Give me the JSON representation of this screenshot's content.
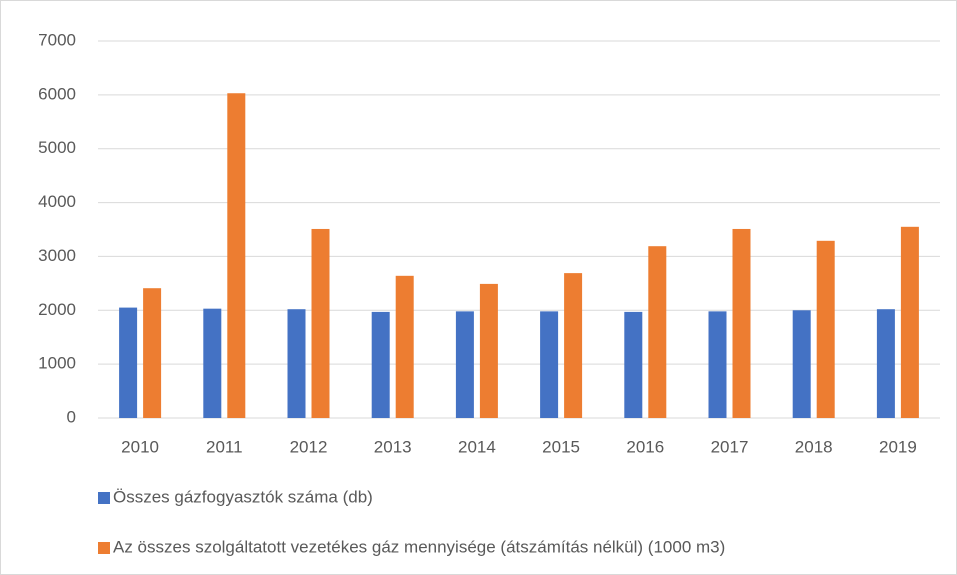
{
  "chart_data": {
    "type": "bar",
    "categories": [
      "2010",
      "2011",
      "2012",
      "2013",
      "2014",
      "2015",
      "2016",
      "2017",
      "2018",
      "2019"
    ],
    "series": [
      {
        "name": "Összes gázfogyasztók száma (db)",
        "color": "#4472c4",
        "values": [
          2050,
          2030,
          2020,
          1970,
          1980,
          1980,
          1970,
          1980,
          2000,
          2020
        ]
      },
      {
        "name": "Az összes szolgáltatott vezetékes gáz mennyisége (átszámítás nélkül) (1000 m3)",
        "color": "#ed7d31",
        "values": [
          2410,
          6030,
          3510,
          2640,
          2490,
          2690,
          3190,
          3510,
          3290,
          3550
        ]
      }
    ],
    "ylim": [
      0,
      7000
    ],
    "yticks": [
      0,
      1000,
      2000,
      3000,
      4000,
      5000,
      6000,
      7000
    ],
    "grid": true,
    "legend": "bottom"
  }
}
